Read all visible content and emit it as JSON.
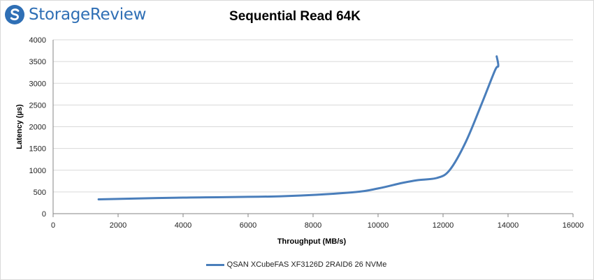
{
  "brand": {
    "name": "StorageReview",
    "color": "#2f6fb5",
    "icon": "storagereview-logo-icon"
  },
  "chart_data": {
    "type": "line",
    "title": "Sequential Read 64K",
    "xlabel": "Throughput  (MB/s)",
    "ylabel": "Latency (µs)",
    "xlim": [
      0,
      16000
    ],
    "ylim": [
      0,
      4000
    ],
    "xticks": [
      0,
      2000,
      4000,
      6000,
      8000,
      10000,
      12000,
      14000,
      16000
    ],
    "yticks": [
      0,
      500,
      1000,
      1500,
      2000,
      2500,
      3000,
      3500,
      4000
    ],
    "grid": "horizontal",
    "legend_position": "bottom",
    "series": [
      {
        "name": "QSAN XCubeFAS XF3126D 2RAID6 26 NVMe",
        "color": "#4a7ebb",
        "x": [
          1400,
          4000,
          7000,
          9200,
          10000,
          10700,
          11200,
          11800,
          12200,
          12700,
          13200,
          13600,
          13700,
          13650
        ],
        "y": [
          330,
          370,
          400,
          490,
          580,
          700,
          770,
          820,
          1000,
          1650,
          2550,
          3300,
          3400,
          3620
        ]
      }
    ]
  }
}
